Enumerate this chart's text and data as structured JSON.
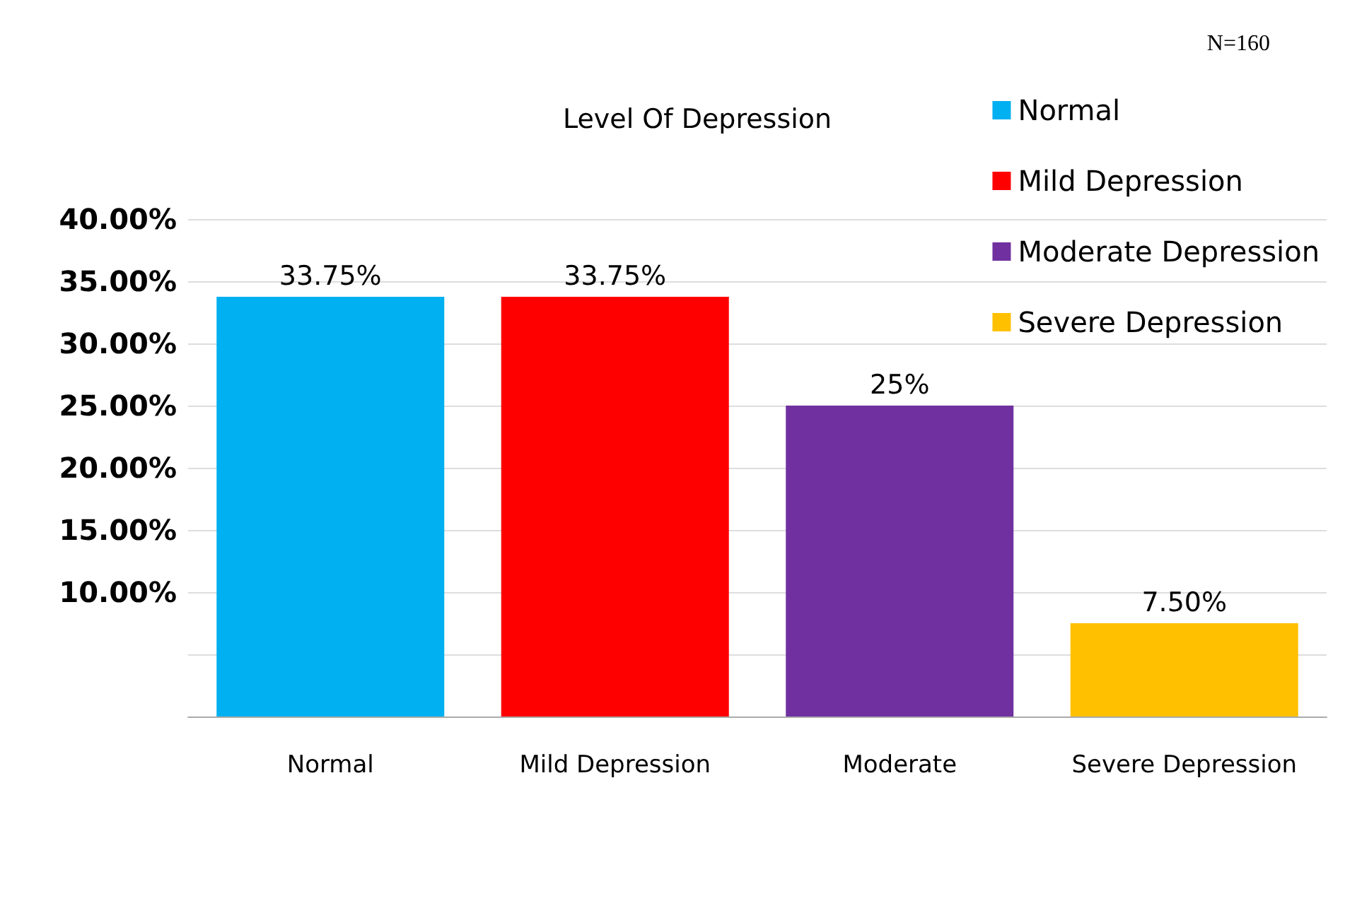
{
  "chart_data": {
    "type": "bar",
    "title": "Level Of Depression",
    "categories": [
      "Normal",
      "Mild Depression",
      "Moderate",
      "Severe Depression"
    ],
    "series": [
      {
        "name": "Normal",
        "color": "#00b0f0",
        "values": [
          33.75,
          null,
          null,
          null
        ]
      },
      {
        "name": "Mild Depression",
        "color": "#ff0000",
        "values": [
          null,
          33.75,
          null,
          null
        ]
      },
      {
        "name": "Moderate Depression",
        "color": "#7030a0",
        "values": [
          null,
          null,
          25,
          null
        ]
      },
      {
        "name": "Severe Depression",
        "color": "#ffc000",
        "values": [
          null,
          null,
          null,
          7.5
        ]
      }
    ],
    "value_labels": [
      "33.75%",
      "33.75%",
      "25%",
      "7.50%"
    ],
    "ylim": [
      0,
      40
    ],
    "yticks": [
      {
        "value": 0,
        "label": null
      },
      {
        "value": 5,
        "label": null
      },
      {
        "value": 10,
        "label": "10.00%"
      },
      {
        "value": 15,
        "label": "15.00%"
      },
      {
        "value": 20,
        "label": "20.00%"
      },
      {
        "value": 25,
        "label": "25.00%"
      },
      {
        "value": 30,
        "label": "30.00%"
      },
      {
        "value": 35,
        "label": "35.00%"
      },
      {
        "value": 40,
        "label": "40.00%"
      }
    ],
    "grid": "y",
    "legend": "top right",
    "annotations": [
      "N=160"
    ]
  }
}
